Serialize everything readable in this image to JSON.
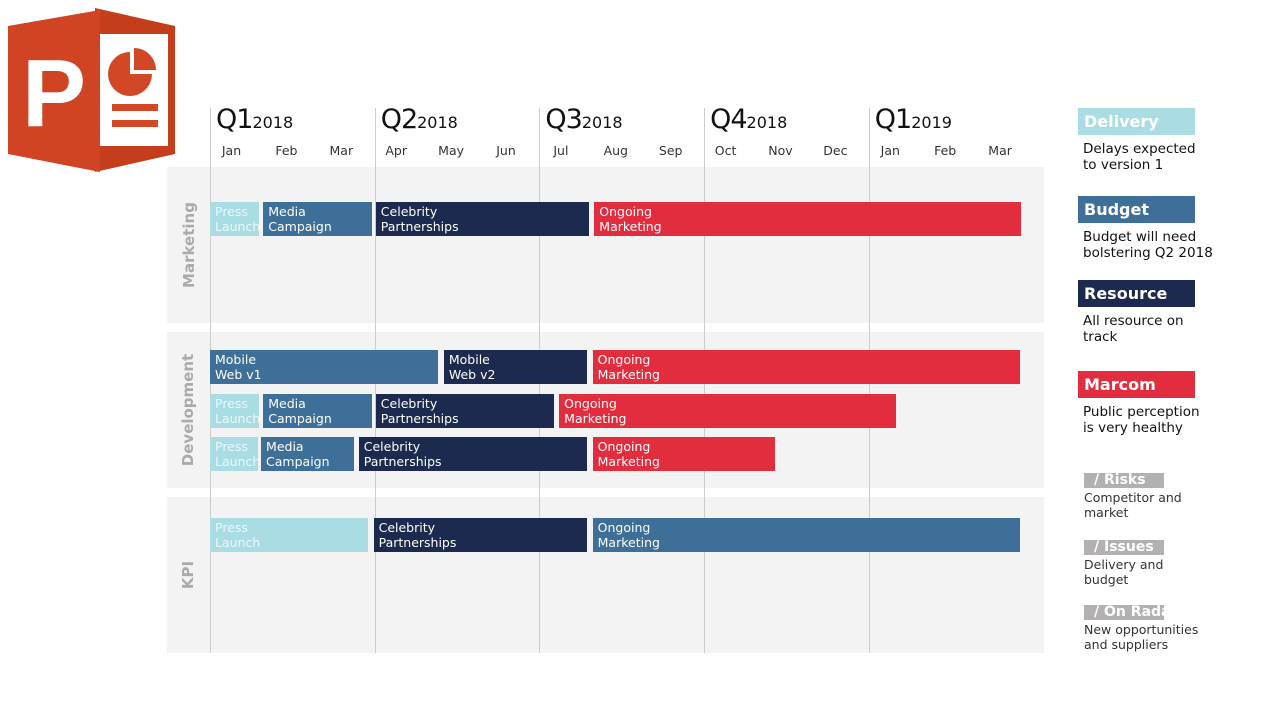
{
  "chart_data": {
    "type": "gantt",
    "quarters": [
      {
        "q": "Q1",
        "year": "2018"
      },
      {
        "q": "Q2",
        "year": "2018"
      },
      {
        "q": "Q3",
        "year": "2018"
      },
      {
        "q": "Q4",
        "year": "2018"
      },
      {
        "q": "Q1",
        "year": "2019"
      }
    ],
    "months": [
      "Jan",
      "Feb",
      "Mar",
      "Apr",
      "May",
      "Jun",
      "Jul",
      "Aug",
      "Sep",
      "Oct",
      "Nov",
      "Dec",
      "Jan",
      "Feb",
      "Mar"
    ],
    "x_unit": "months from Jan 2018",
    "colors": {
      "Delivery": "#a9dde3",
      "Budget": "#3e6f99",
      "Resource": "#1b2a4e",
      "Marcom": "#e22d3f"
    },
    "groups": [
      {
        "label": "Marketing",
        "rows": [
          [
            {
              "label": "Press\nLaunch",
              "start": 0,
              "end": 0.9,
              "category": "Delivery"
            },
            {
              "label": "Media\nCampaign",
              "start": 0.97,
              "end": 2.95,
              "category": "Budget"
            },
            {
              "label": "Celebrity\nPartnerships",
              "start": 3.02,
              "end": 6.9,
              "category": "Resource"
            },
            {
              "label": "Ongoing\nMarketing",
              "start": 7.0,
              "end": 14.78,
              "category": "Marcom"
            }
          ]
        ]
      },
      {
        "label": "Development",
        "rows": [
          [
            {
              "label": "Mobile\nWeb v1",
              "start": 0,
              "end": 4.15,
              "category": "Budget"
            },
            {
              "label": "Mobile\nWeb v2",
              "start": 4.26,
              "end": 6.87,
              "category": "Resource"
            },
            {
              "label": "Ongoing\nMarketing",
              "start": 6.97,
              "end": 14.75,
              "category": "Marcom"
            }
          ],
          [
            {
              "label": "Press\nLaunch",
              "start": 0,
              "end": 0.9,
              "category": "Delivery"
            },
            {
              "label": "Media\nCampaign",
              "start": 0.97,
              "end": 2.95,
              "category": "Budget"
            },
            {
              "label": "Celebrity\nPartnerships",
              "start": 3.02,
              "end": 6.27,
              "category": "Resource"
            },
            {
              "label": "Ongoing\nMarketing",
              "start": 6.36,
              "end": 12.5,
              "category": "Marcom"
            }
          ],
          [
            {
              "label": "Press\nLaunch",
              "start": 0,
              "end": 0.88,
              "category": "Delivery"
            },
            {
              "label": "Media\nCampaign",
              "start": 0.93,
              "end": 2.62,
              "category": "Budget"
            },
            {
              "label": "Celebrity\nPartnerships",
              "start": 2.71,
              "end": 6.87,
              "category": "Resource"
            },
            {
              "label": "Ongoing\nMarketing",
              "start": 6.97,
              "end": 10.3,
              "category": "Marcom"
            }
          ]
        ]
      },
      {
        "label": "KPI",
        "rows": [
          [
            {
              "label": "Press\nLaunch",
              "start": 0,
              "end": 2.87,
              "category": "Delivery"
            },
            {
              "label": "Celebrity\nPartnerships",
              "start": 2.98,
              "end": 6.87,
              "category": "Resource"
            },
            {
              "label": "Ongoing\nMarketing",
              "start": 6.97,
              "end": 14.75,
              "category": "Budget"
            }
          ]
        ]
      }
    ]
  },
  "legend": [
    {
      "title": "Delivery",
      "text": "Delays expected\nto version 1",
      "color": "#a9dde3"
    },
    {
      "title": "Budget",
      "text": "Budget will need\nbolstering Q2 2018",
      "color": "#3e6f99"
    },
    {
      "title": "Resource",
      "text": "All resource on\ntrack",
      "color": "#1b2a4e"
    },
    {
      "title": "Marcom",
      "text": "Public perception\nis very healthy",
      "color": "#e22d3f"
    }
  ],
  "notes": [
    {
      "title": "/ Risks",
      "text": "Competitor and\nmarket"
    },
    {
      "title": "/ Issues",
      "text": "Delivery and\nbudget"
    },
    {
      "title": "/ On Radar",
      "text": "New opportunities\nand suppliers"
    }
  ],
  "logo": {
    "letter": "P",
    "app": "PowerPoint"
  }
}
